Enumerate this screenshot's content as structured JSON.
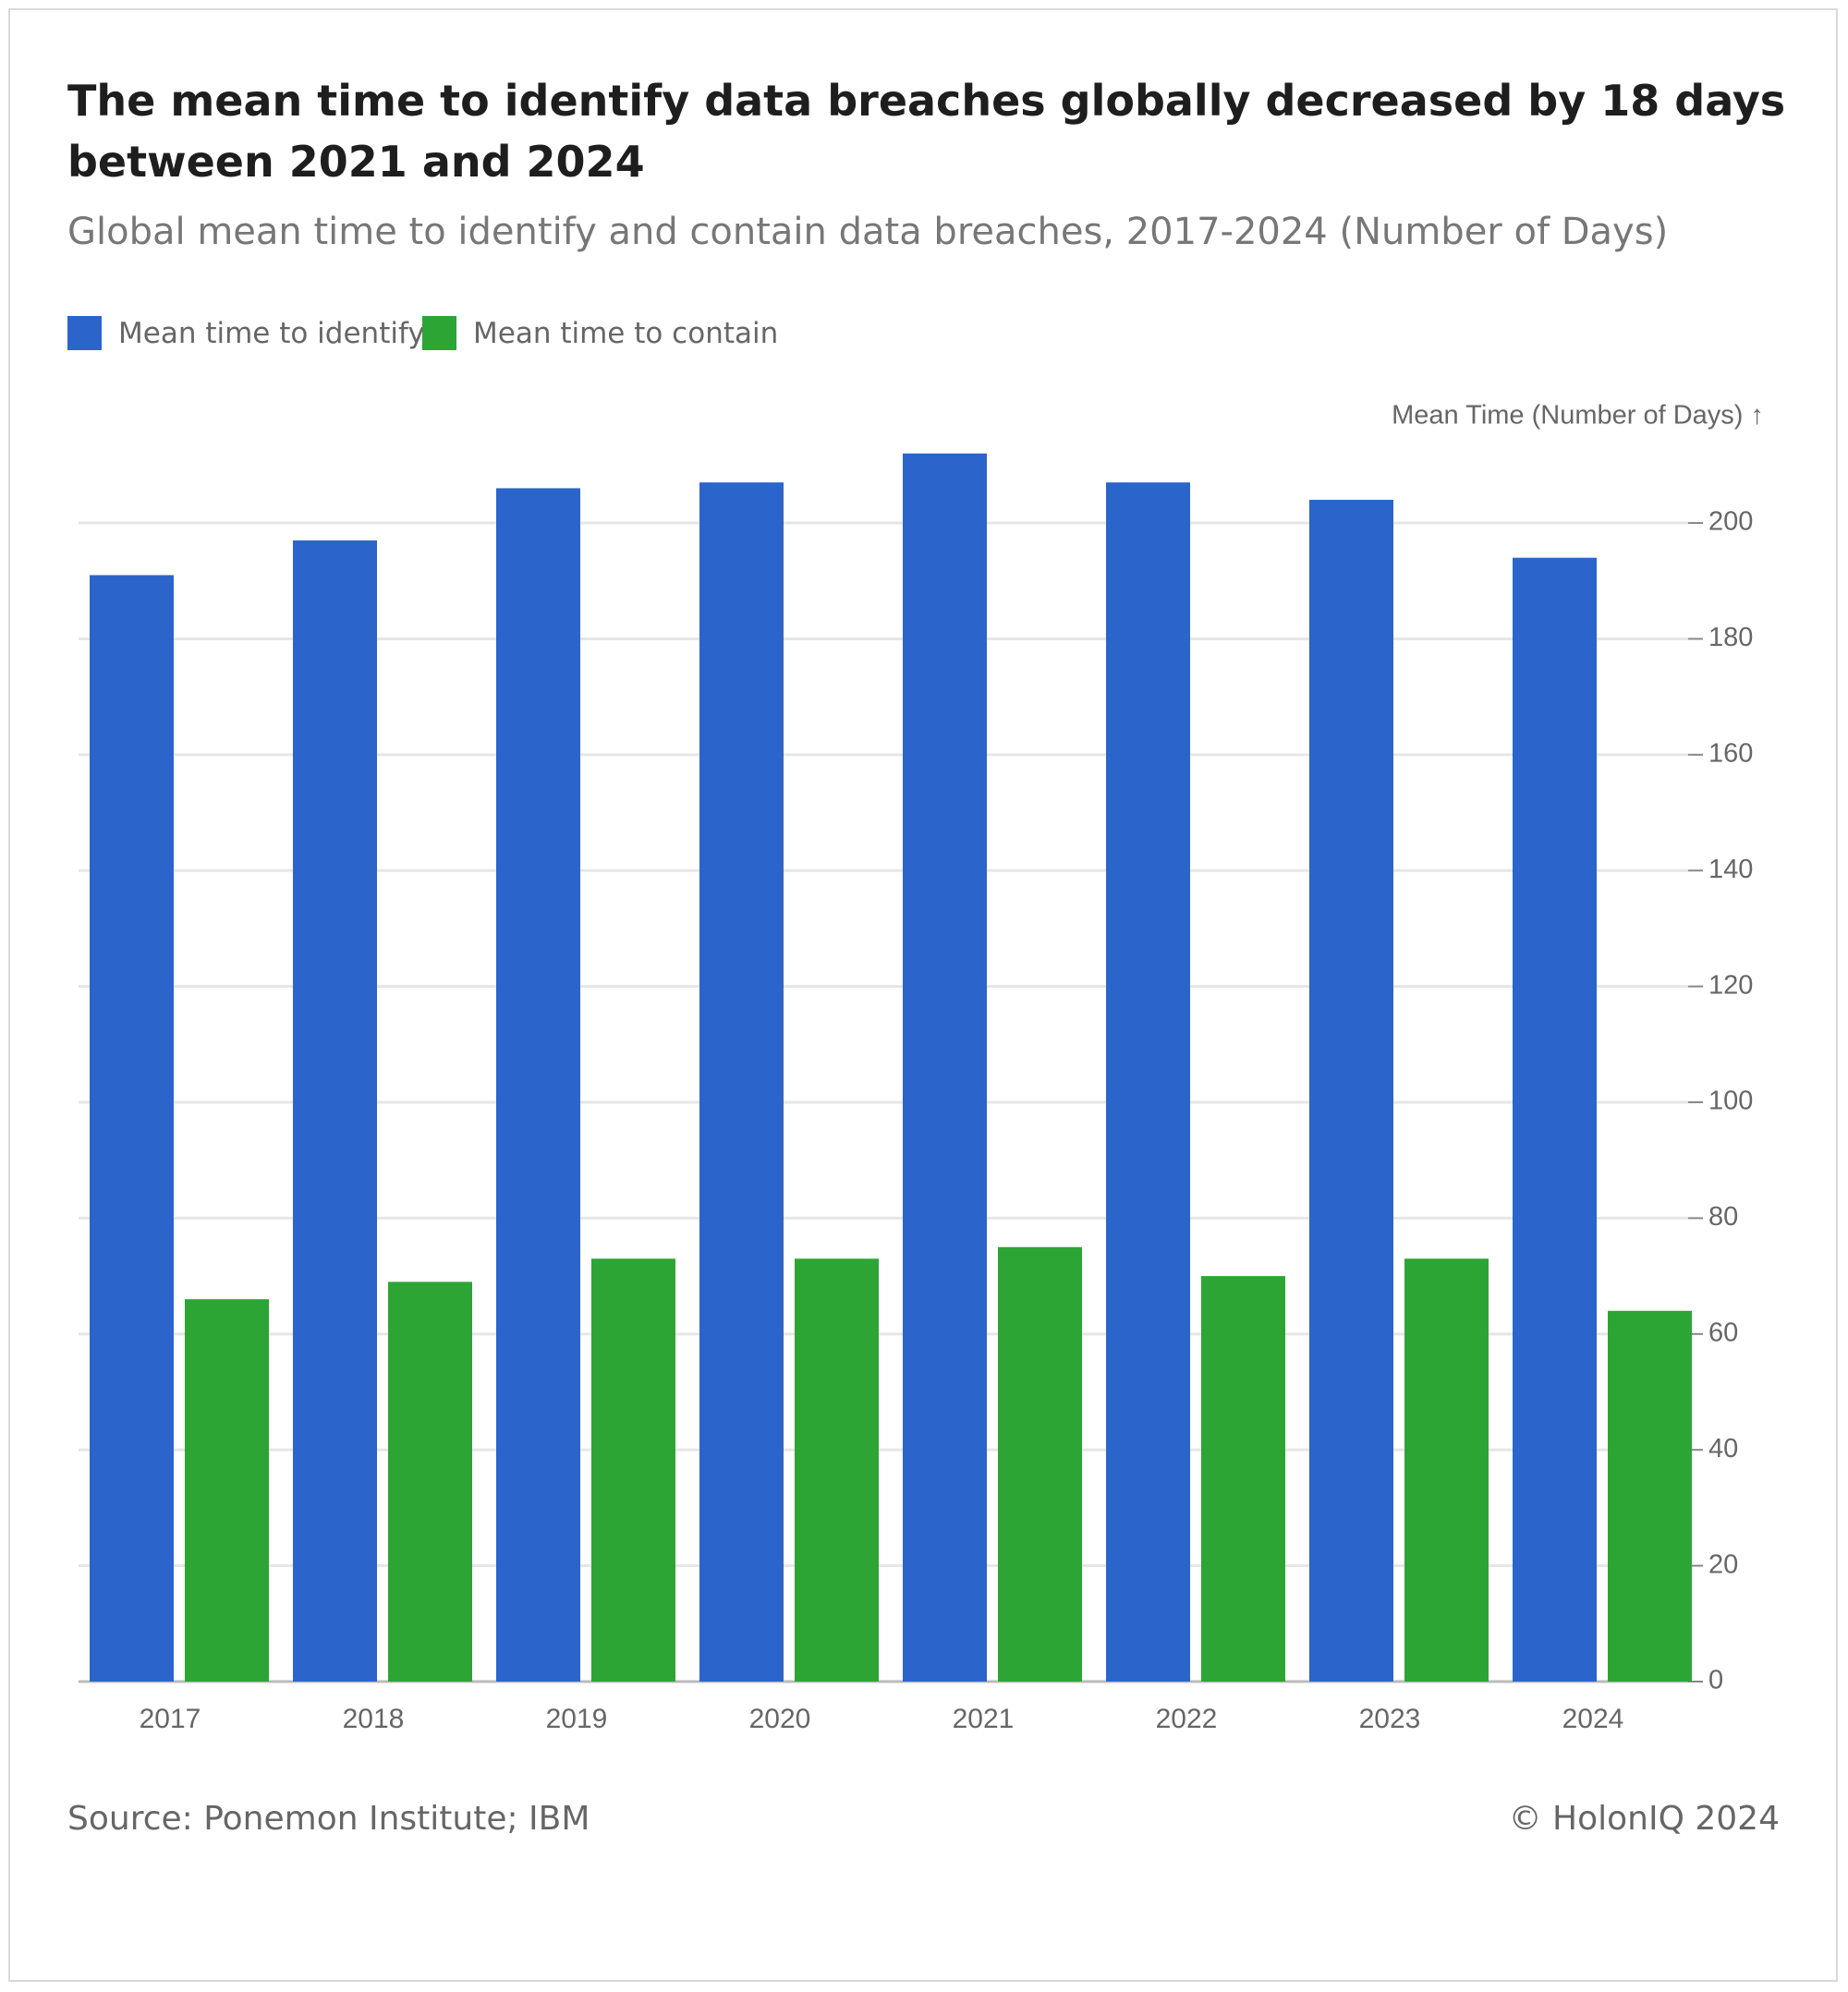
{
  "chart_data": {
    "type": "bar",
    "title": "The mean time to identify data breaches globally decreased by 18 days between 2021 and 2024",
    "subtitle": "Global mean time to identify and contain data breaches, 2017-2024 (Number of Days)",
    "y_axis_label": "Mean Time (Number of Days) ↑",
    "categories": [
      "2017",
      "2018",
      "2019",
      "2020",
      "2021",
      "2022",
      "2023",
      "2024"
    ],
    "series": [
      {
        "name": "Mean time to identify",
        "color": "#2b65cc",
        "values": [
          191,
          197,
          206,
          207,
          212,
          207,
          204,
          194
        ]
      },
      {
        "name": "Mean time to contain",
        "color": "#2ca535",
        "values": [
          66,
          69,
          73,
          73,
          75,
          70,
          73,
          64
        ]
      }
    ],
    "ylim": [
      0,
      215
    ],
    "yticks": [
      0,
      20,
      40,
      60,
      80,
      100,
      120,
      140,
      160,
      180,
      200
    ],
    "grid": true,
    "source": "Source: Ponemon Institute; IBM",
    "credit": "© HolonIQ 2024"
  }
}
